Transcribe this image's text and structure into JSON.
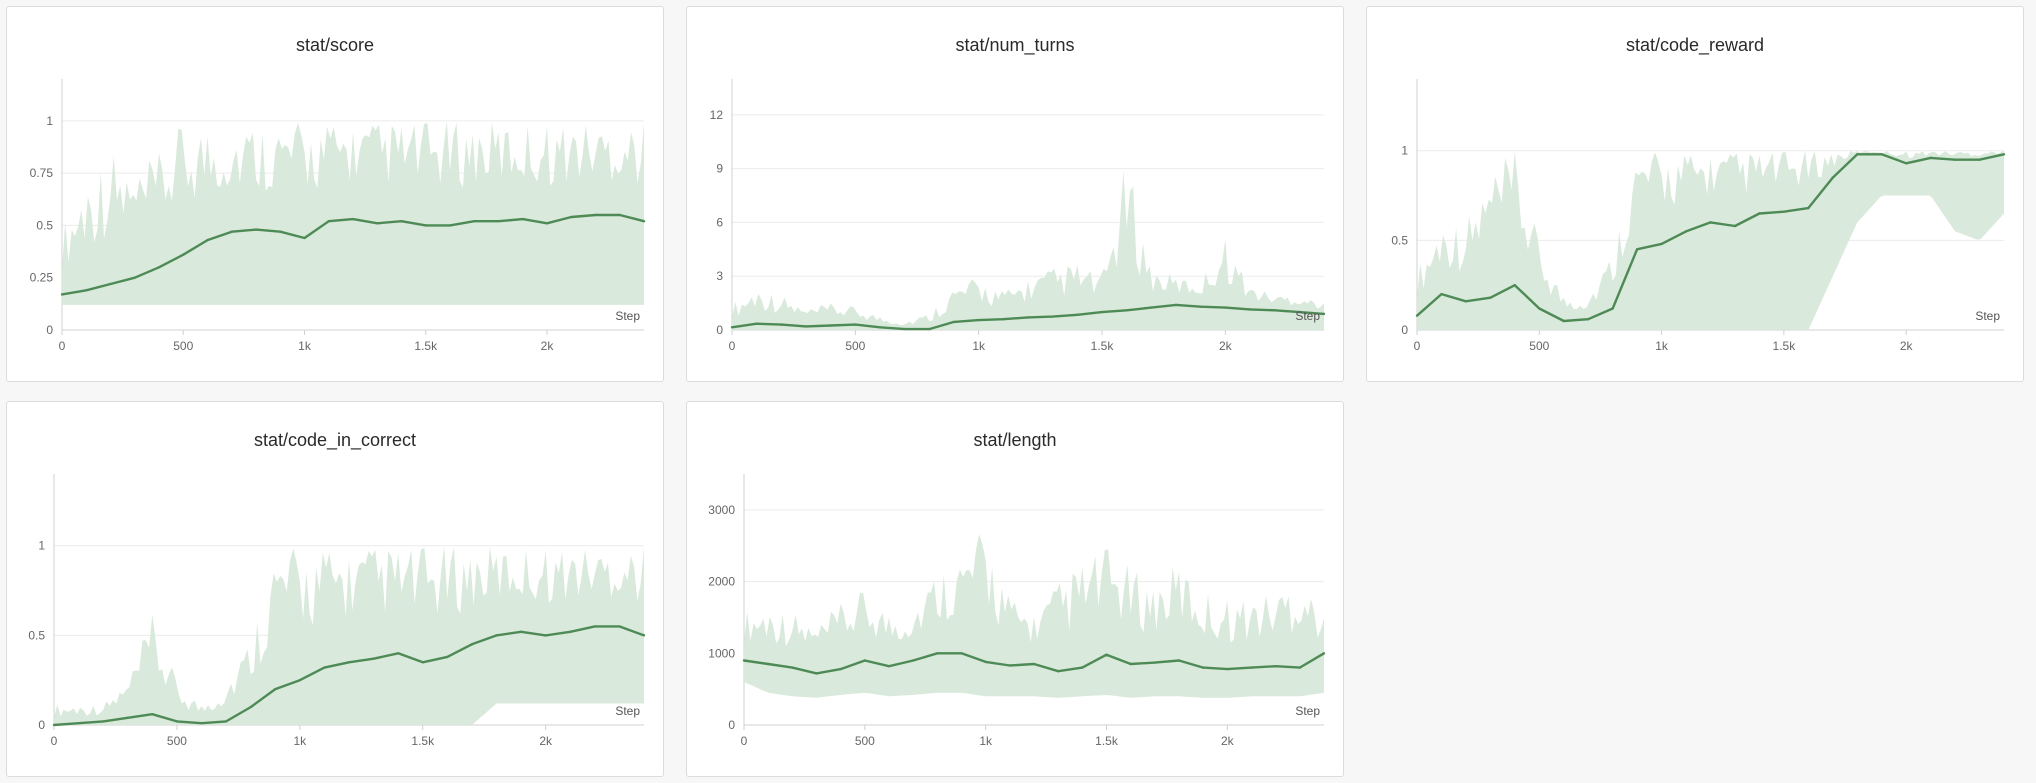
{
  "colors": {
    "smoothed_line": "#4e8a56",
    "raw_band": "#d7e8d9",
    "grid": "#ececec",
    "axis": "#d0d0d0"
  },
  "chart_data": [
    {
      "id": "score",
      "type": "line",
      "title": "stat/score",
      "xlabel": "Step",
      "xlim": [
        0,
        2400
      ],
      "ylim": [
        0,
        1.2
      ],
      "xticks": [
        0,
        500,
        1000,
        1500,
        2000
      ],
      "xtick_labels": [
        "0",
        "500",
        "1k",
        "1.5k",
        "2k"
      ],
      "yticks": [
        0,
        0.25,
        0.5,
        0.75,
        1
      ],
      "ytick_labels": [
        "0",
        "0.25",
        "0.5",
        "0.75",
        "1"
      ],
      "grid": true,
      "series": [
        {
          "x": [
            0,
            100,
            200,
            300,
            400,
            500,
            600,
            700,
            800,
            900,
            1000,
            1100,
            1200,
            1300,
            1400,
            1500,
            1600,
            1700,
            1800,
            1900,
            2000,
            2100,
            2200,
            2300,
            2400
          ],
          "smoothed": [
            0.17,
            0.19,
            0.22,
            0.25,
            0.3,
            0.36,
            0.43,
            0.47,
            0.48,
            0.47,
            0.44,
            0.52,
            0.53,
            0.51,
            0.52,
            0.5,
            0.5,
            0.52,
            0.52,
            0.53,
            0.51,
            0.54,
            0.55,
            0.55,
            0.52
          ],
          "raw_low": [
            0.12,
            0.12,
            0.12,
            0.12,
            0.12,
            0.12,
            0.12,
            0.12,
            0.12,
            0.12,
            0.12,
            0.12,
            0.12,
            0.12,
            0.12,
            0.12,
            0.12,
            0.12,
            0.12,
            0.12,
            0.12,
            0.12,
            0.12,
            0.12,
            0.12
          ],
          "raw_high": [
            0.5,
            0.75,
            0.88,
            0.75,
            0.85,
            1,
            1,
            1,
            1,
            1,
            1,
            1,
            1,
            1,
            1,
            1,
            1,
            1,
            1,
            1,
            1,
            1,
            1,
            1,
            1
          ]
        }
      ]
    },
    {
      "id": "num_turns",
      "type": "line",
      "title": "stat/num_turns",
      "xlabel": "Step",
      "xlim": [
        0,
        2400
      ],
      "ylim": [
        0,
        14
      ],
      "xticks": [
        0,
        500,
        1000,
        1500,
        2000
      ],
      "xtick_labels": [
        "0",
        "500",
        "1k",
        "1.5k",
        "2k"
      ],
      "yticks": [
        0,
        3,
        6,
        9,
        12
      ],
      "ytick_labels": [
        "0",
        "3",
        "6",
        "9",
        "12"
      ],
      "grid": true,
      "series": [
        {
          "x": [
            0,
            100,
            200,
            300,
            400,
            500,
            600,
            700,
            800,
            900,
            1000,
            1100,
            1200,
            1300,
            1400,
            1500,
            1600,
            1700,
            1800,
            1900,
            2000,
            2100,
            2200,
            2300,
            2400
          ],
          "smoothed": [
            0.15,
            0.35,
            0.3,
            0.2,
            0.25,
            0.3,
            0.15,
            0.05,
            0.05,
            0.45,
            0.55,
            0.6,
            0.7,
            0.75,
            0.85,
            1.0,
            1.1,
            1.25,
            1.4,
            1.3,
            1.25,
            1.15,
            1.1,
            1.0,
            0.9
          ],
          "raw_low": [
            0,
            0,
            0,
            0,
            0,
            0,
            0,
            0,
            0,
            0,
            0,
            0,
            0,
            0,
            0,
            0,
            0,
            0,
            0,
            0,
            0,
            0,
            0,
            0,
            0
          ],
          "raw_high": [
            1.5,
            2.5,
            2.0,
            1.2,
            1.5,
            1.3,
            0.8,
            0.5,
            1.0,
            2.5,
            3.0,
            2.2,
            3.0,
            3.5,
            3.8,
            3.0,
            9.8,
            3.5,
            3.0,
            2.8,
            5.3,
            2.5,
            2.0,
            2.0,
            1.5
          ]
        }
      ]
    },
    {
      "id": "code_reward",
      "type": "line",
      "title": "stat/code_reward",
      "xlabel": "Step",
      "xlim": [
        0,
        2400
      ],
      "ylim": [
        0,
        1.4
      ],
      "xticks": [
        0,
        500,
        1000,
        1500,
        2000
      ],
      "xtick_labels": [
        "0",
        "500",
        "1k",
        "1.5k",
        "2k"
      ],
      "yticks": [
        0,
        0.5,
        1
      ],
      "ytick_labels": [
        "0",
        "0.5",
        "1"
      ],
      "grid": true,
      "series": [
        {
          "x": [
            0,
            100,
            200,
            300,
            400,
            500,
            600,
            700,
            800,
            900,
            1000,
            1100,
            1200,
            1300,
            1400,
            1500,
            1600,
            1700,
            1800,
            1900,
            2000,
            2100,
            2200,
            2300,
            2400
          ],
          "smoothed": [
            0.08,
            0.2,
            0.16,
            0.18,
            0.25,
            0.12,
            0.05,
            0.06,
            0.12,
            0.45,
            0.48,
            0.55,
            0.6,
            0.58,
            0.65,
            0.66,
            0.68,
            0.85,
            0.98,
            0.98,
            0.93,
            0.96,
            0.95,
            0.95,
            0.98
          ],
          "raw_low": [
            0,
            0,
            0,
            0,
            0,
            0,
            0,
            0,
            0,
            0,
            0,
            0,
            0,
            0,
            0,
            0,
            0,
            0.3,
            0.6,
            0.75,
            0.75,
            0.75,
            0.55,
            0.5,
            0.65
          ],
          "raw_high": [
            0.35,
            0.62,
            0.62,
            0.9,
            1.0,
            0.5,
            0.2,
            0.2,
            0.45,
            1.0,
            1.0,
            1.0,
            1.0,
            1.0,
            1.0,
            1.0,
            1.0,
            1.0,
            1.0,
            1.0,
            1.0,
            1.0,
            1.0,
            1.0,
            1.0
          ]
        }
      ]
    },
    {
      "id": "code_in_correct",
      "type": "line",
      "title": "stat/code_in_correct",
      "xlabel": "Step",
      "xlim": [
        0,
        2400
      ],
      "ylim": [
        0,
        1.4
      ],
      "xticks": [
        0,
        500,
        1000,
        1500,
        2000
      ],
      "xtick_labels": [
        "0",
        "500",
        "1k",
        "1.5k",
        "2k"
      ],
      "yticks": [
        0,
        0.5,
        1
      ],
      "ytick_labels": [
        "0",
        "0.5",
        "1"
      ],
      "grid": true,
      "series": [
        {
          "x": [
            0,
            100,
            200,
            300,
            400,
            500,
            600,
            700,
            800,
            900,
            1000,
            1100,
            1200,
            1300,
            1400,
            1500,
            1600,
            1700,
            1800,
            1900,
            2000,
            2100,
            2200,
            2300,
            2400
          ],
          "smoothed": [
            0.0,
            0.01,
            0.02,
            0.04,
            0.06,
            0.02,
            0.01,
            0.02,
            0.1,
            0.2,
            0.25,
            0.32,
            0.35,
            0.37,
            0.4,
            0.35,
            0.38,
            0.45,
            0.5,
            0.52,
            0.5,
            0.52,
            0.55,
            0.55,
            0.5
          ],
          "raw_low": [
            0,
            0,
            0,
            0,
            0,
            0,
            0,
            0,
            0,
            0,
            0,
            0,
            0,
            0,
            0,
            0,
            0,
            0,
            0.12,
            0.12,
            0.12,
            0.12,
            0.12,
            0.12,
            0.12
          ],
          "raw_high": [
            0.12,
            0.12,
            0.12,
            0.25,
            0.62,
            0.25,
            0.12,
            0.25,
            0.5,
            1.0,
            1.0,
            1.0,
            1.0,
            1.0,
            1.0,
            1.0,
            1.0,
            1.0,
            1.0,
            1.0,
            1.0,
            1.0,
            1.0,
            1.0,
            1.0
          ]
        }
      ]
    },
    {
      "id": "length",
      "type": "line",
      "title": "stat/length",
      "xlabel": "Step",
      "xlim": [
        0,
        2400
      ],
      "ylim": [
        0,
        3500
      ],
      "xticks": [
        0,
        500,
        1000,
        1500,
        2000
      ],
      "xtick_labels": [
        "0",
        "500",
        "1k",
        "1.5k",
        "2k"
      ],
      "yticks": [
        0,
        1000,
        2000,
        3000
      ],
      "ytick_labels": [
        "0",
        "1000",
        "2000",
        "3000"
      ],
      "grid": true,
      "series": [
        {
          "x": [
            0,
            100,
            200,
            300,
            400,
            500,
            600,
            700,
            800,
            900,
            1000,
            1100,
            1200,
            1300,
            1400,
            1500,
            1600,
            1700,
            1800,
            1900,
            2000,
            2100,
            2200,
            2300,
            2400
          ],
          "smoothed": [
            900,
            850,
            800,
            720,
            780,
            900,
            820,
            900,
            1000,
            1000,
            880,
            830,
            850,
            750,
            800,
            980,
            850,
            870,
            900,
            800,
            780,
            800,
            820,
            800,
            1000
          ],
          "raw_low": [
            600,
            450,
            400,
            380,
            420,
            450,
            400,
            420,
            450,
            450,
            400,
            400,
            400,
            380,
            400,
            420,
            380,
            400,
            400,
            380,
            380,
            400,
            400,
            400,
            450
          ],
          "raw_high": [
            1600,
            1700,
            1600,
            1400,
            1700,
            1900,
            1600,
            1700,
            2200,
            2400,
            2800,
            1800,
            1600,
            2000,
            2300,
            2500,
            2200,
            2000,
            2300,
            1900,
            1800,
            1800,
            1900,
            2200,
            1500
          ]
        }
      ]
    }
  ]
}
